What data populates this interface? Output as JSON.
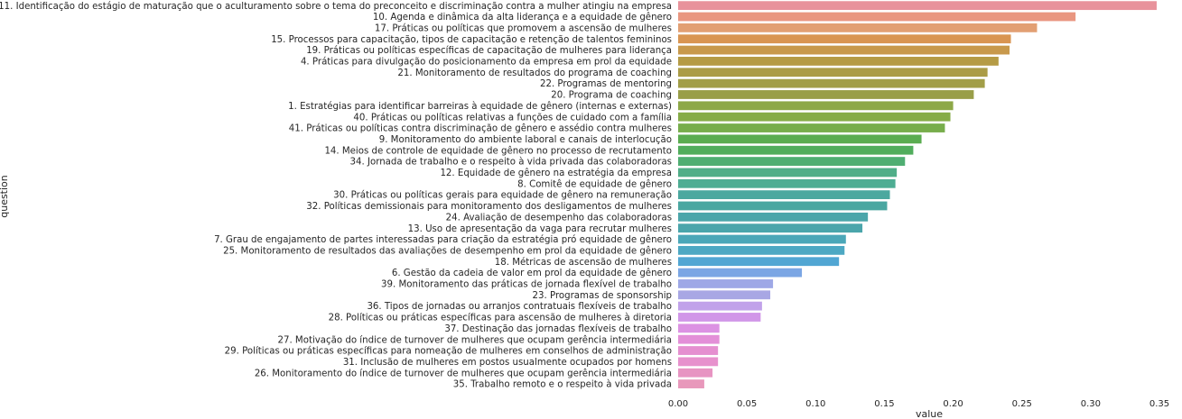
{
  "chart_data": {
    "type": "bar",
    "orientation": "horizontal",
    "xlabel": "value",
    "ylabel": "question",
    "xlim": [
      0.0,
      0.35
    ],
    "xticks": [
      "0.00",
      "0.05",
      "0.10",
      "0.15",
      "0.20",
      "0.25",
      "0.30",
      "0.35"
    ],
    "grid": false,
    "categories": [
      "11. Identificação do estágio de maturação que o aculturamento sobre o tema do preconceito e discriminação contra a mulher atingiu na empresa",
      "10. Agenda e dinâmica da alta liderança e a equidade de gênero",
      "17. Práticas ou políticas que promovem a ascensão de mulheres",
      "15. Processos para capacitação, tipos de capacitação e retenção de talentos femininos",
      "19. Práticas ou políticas específicas de capacitação de mulheres para liderança",
      "4. Práticas para divulgação do posicionamento da empresa em prol da equidade",
      "21. Monitoramento de resultados do programa de coaching",
      "22. Programas de mentoring",
      "20. Programa de coaching",
      "1. Estratégias para identificar barreiras à equidade de gênero (internas e externas)",
      "40. Práticas ou políticas relativas a funções de cuidado com a família",
      "41. Práticas ou políticas contra discriminação de gênero e assédio contra mulheres",
      "9. Monitoramento do ambiente laboral e canais de interlocução",
      "14. Meios de controle de equidade de gênero no processo de recrutamento",
      "34. Jornada de trabalho e o respeito à vida privada das colaboradoras",
      "12. Equidade de gênero na estratégia da empresa",
      "8. Comitê de equidade de gênero",
      "30. Práticas ou políticas gerais para equidade de gênero na remuneração",
      "32. Políticas demissionais para monitoramento dos desligamentos de mulheres",
      "24. Avaliação de desempenho das colaboradoras",
      "13. Uso de apresentação da vaga para recrutar mulheres",
      "7. Grau de engajamento de partes interessadas para criação da estratégia pró equidade de gênero",
      "25. Monitoramento de resultados das avaliações de desempenho em prol da equidade de gênero",
      "18. Métricas de ascensão de mulheres",
      "6. Gestão da cadeia de valor em prol da equidade de gênero",
      "39. Monitoramento das práticas de jornada flexível de trabalho",
      "23. Programas de sponsorship",
      "36. Tipos de jornadas ou arranjos contratuais flexíveis de trabalho",
      "28. Políticas ou práticas específicas para ascensão de mulheres à diretoria",
      "37. Destinação das jornadas flexíveis de trabalho",
      "27. Motivação do índice de turnover de mulheres que ocupam gerência intermediária",
      "29. Políticas ou práticas específicas para nomeação de mulheres em conselhos de administração",
      "31. Inclusão de mulheres em postos usualmente ocupados por homens",
      "26. Monitoramento do índice de turnover de mulheres que ocupam gerência intermediária",
      "35. Trabalho remoto e o respeito à vida privada"
    ],
    "values": [
      0.348,
      0.289,
      0.261,
      0.242,
      0.241,
      0.233,
      0.225,
      0.223,
      0.215,
      0.2,
      0.198,
      0.194,
      0.177,
      0.171,
      0.165,
      0.159,
      0.158,
      0.154,
      0.152,
      0.138,
      0.134,
      0.122,
      0.121,
      0.117,
      0.09,
      0.069,
      0.067,
      0.061,
      0.06,
      0.03,
      0.03,
      0.029,
      0.029,
      0.025,
      0.019
    ],
    "colors": [
      "#e8929b",
      "#e99680",
      "#e29f73",
      "#d99552",
      "#c8994c",
      "#b59b45",
      "#ab9c46",
      "#a29e48",
      "#999e48",
      "#8da847",
      "#86ac47",
      "#77ad4b",
      "#5aac50",
      "#51ad5c",
      "#4fae72",
      "#50ae88",
      "#4ead93",
      "#4ba89f",
      "#4aa7a1",
      "#4ba6aa",
      "#4aa5ab",
      "#4ba7b8",
      "#4da8c3",
      "#51a6d3",
      "#7ba6e4",
      "#9ea8e6",
      "#a8a7e4",
      "#c1a2ea",
      "#d196e8",
      "#dc92e3",
      "#e38fd8",
      "#e58fd0",
      "#e791cd",
      "#e794c2",
      "#e898bb"
    ]
  }
}
